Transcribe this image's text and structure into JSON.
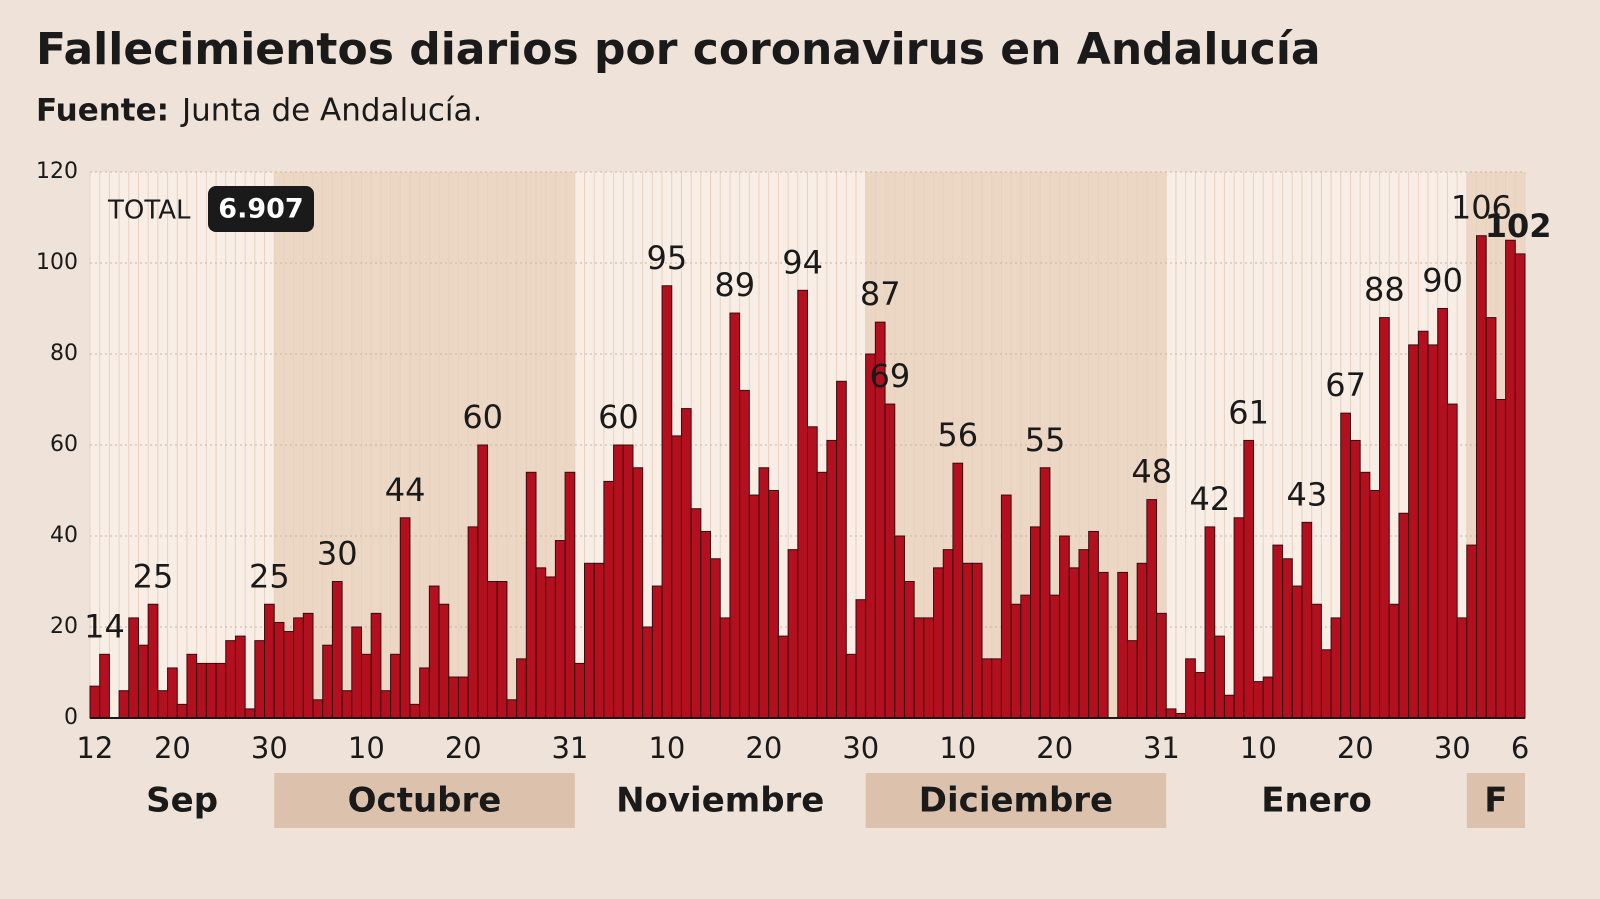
{
  "chart_data": {
    "type": "bar",
    "title": "Fallecimientos diarios por coronavirus en Andalucía",
    "source_label": "Fuente:",
    "source": "Junta de Andalucía.",
    "total_label": "TOTAL",
    "total_value": "6.907",
    "color": "#b3101f",
    "ylim": [
      0,
      120
    ],
    "yticks": [
      0,
      20,
      40,
      60,
      80,
      100,
      120
    ],
    "grid": true,
    "categories": [
      "12",
      null,
      null,
      null,
      null,
      null,
      null,
      null,
      "20",
      null,
      null,
      null,
      null,
      null,
      null,
      null,
      null,
      null,
      "30",
      null,
      null,
      null,
      null,
      null,
      null,
      null,
      null,
      null,
      "10",
      null,
      null,
      null,
      null,
      null,
      null,
      null,
      null,
      null,
      "20",
      null,
      null,
      null,
      null,
      null,
      null,
      null,
      null,
      null,
      null,
      "31",
      null,
      null,
      null,
      null,
      null,
      null,
      null,
      null,
      null,
      "10",
      null,
      null,
      null,
      null,
      null,
      null,
      null,
      null,
      null,
      "20",
      null,
      null,
      null,
      null,
      null,
      null,
      null,
      null,
      null,
      "30",
      null,
      null,
      null,
      null,
      null,
      null,
      null,
      null,
      null,
      "10",
      null,
      null,
      null,
      null,
      null,
      null,
      null,
      null,
      null,
      "20",
      null,
      null,
      null,
      null,
      null,
      null,
      null,
      null,
      null,
      null,
      "31",
      null,
      null,
      null,
      null,
      null,
      null,
      null,
      null,
      null,
      "10",
      null,
      null,
      null,
      null,
      null,
      null,
      null,
      null,
      null,
      "20",
      null,
      null,
      null,
      null,
      null,
      null,
      null,
      null,
      null,
      "30",
      null,
      null,
      null,
      null,
      null,
      null,
      "6"
    ],
    "values": [
      7,
      14,
      0,
      6,
      22,
      16,
      25,
      6,
      11,
      3,
      14,
      12,
      12,
      12,
      17,
      18,
      2,
      17,
      25,
      21,
      19,
      22,
      23,
      4,
      16,
      30,
      6,
      20,
      14,
      23,
      6,
      14,
      44,
      3,
      11,
      29,
      25,
      9,
      9,
      42,
      60,
      30,
      30,
      4,
      13,
      54,
      33,
      31,
      39,
      54,
      12,
      34,
      34,
      52,
      60,
      60,
      55,
      20,
      29,
      95,
      62,
      68,
      46,
      41,
      35,
      22,
      89,
      72,
      49,
      55,
      50,
      18,
      37,
      94,
      64,
      54,
      61,
      74,
      14,
      26,
      80,
      87,
      69,
      40,
      30,
      22,
      22,
      33,
      37,
      56,
      34,
      34,
      13,
      13,
      49,
      25,
      27,
      42,
      55,
      27,
      40,
      33,
      37,
      41,
      32,
      0,
      32,
      17,
      34,
      48,
      23,
      2,
      1,
      13,
      10,
      42,
      18,
      5,
      44,
      61,
      8,
      9,
      38,
      35,
      29,
      43,
      25,
      15,
      22,
      67,
      61,
      54,
      50,
      88,
      25,
      45,
      82,
      85,
      82,
      90,
      69,
      22,
      38,
      106,
      88,
      70,
      105,
      102
    ],
    "labeled": [
      1,
      6,
      18,
      25,
      32,
      40,
      54,
      59,
      66,
      73,
      81,
      82,
      89,
      98,
      109,
      115,
      119,
      125,
      129,
      133,
      139,
      143,
      147
    ],
    "months": [
      {
        "label": "Sep",
        "days": 19,
        "shaded": false
      },
      {
        "label": "Octubre",
        "days": 31,
        "shaded": true
      },
      {
        "label": "Noviembre",
        "days": 30,
        "shaded": false
      },
      {
        "label": "Diciembre",
        "days": 31,
        "shaded": true
      },
      {
        "label": "Enero",
        "days": 31,
        "shaded": false
      },
      {
        "label": "F",
        "days": 6,
        "shaded": true
      }
    ]
  }
}
